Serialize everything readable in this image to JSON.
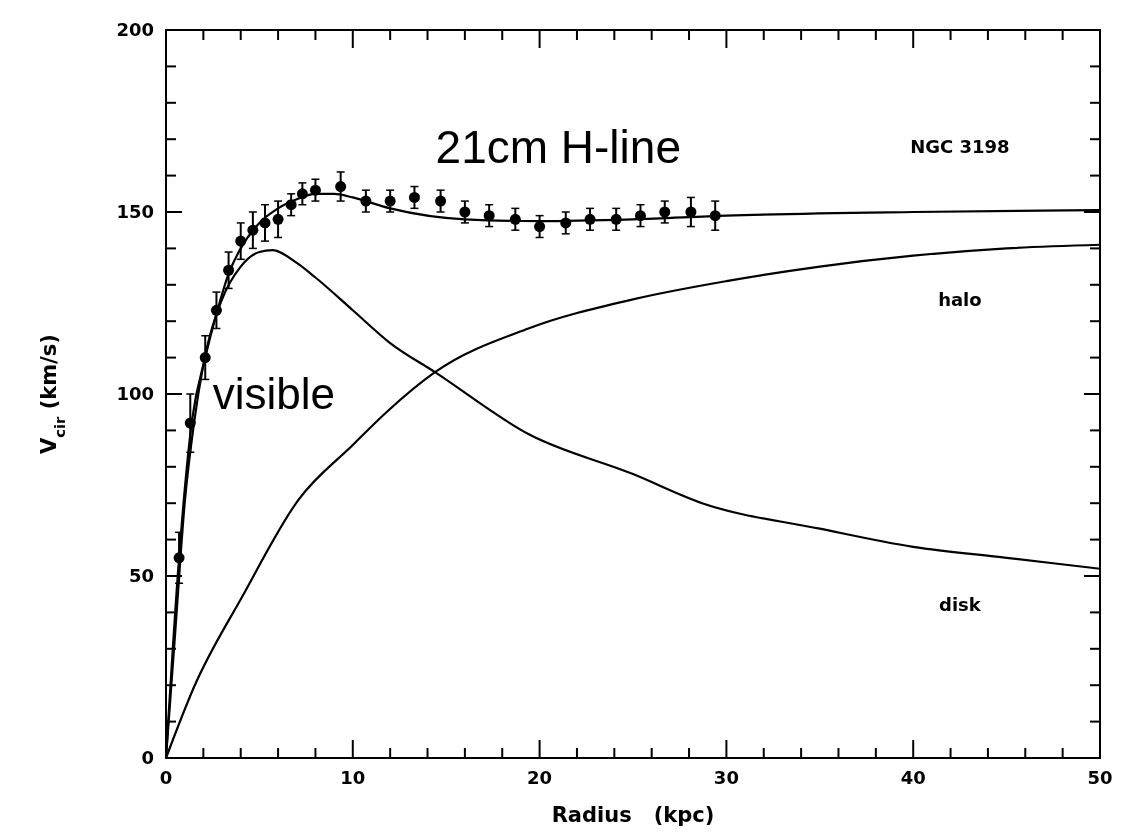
{
  "chart_data": {
    "type": "line",
    "xlabel": "Radius   (kpc)",
    "ylabel": "V$_{cir}$ (km/s)",
    "xlim": [
      0,
      50
    ],
    "ylim": [
      0,
      200
    ],
    "xticks": [
      0,
      {
        "value": 2,
        "label": null
      },
      {
        "value": 4,
        "label": null
      },
      {
        "value": 6,
        "label": null
      },
      {
        "value": 8,
        "label": null
      },
      10,
      {
        "value": 12,
        "label": null
      },
      {
        "value": 14,
        "label": null
      },
      {
        "value": 16,
        "label": null
      },
      {
        "value": 18,
        "label": null
      },
      20,
      {
        "value": 22,
        "label": null
      },
      {
        "value": 24,
        "label": null
      },
      {
        "value": 26,
        "label": null
      },
      {
        "value": 28,
        "label": null
      },
      30,
      {
        "value": 32,
        "label": null
      },
      {
        "value": 34,
        "label": null
      },
      {
        "value": 36,
        "label": null
      },
      {
        "value": 38,
        "label": null
      },
      40,
      {
        "value": 42,
        "label": null
      },
      {
        "value": 44,
        "label": null
      },
      {
        "value": 46,
        "label": null
      },
      {
        "value": 48,
        "label": null
      },
      50
    ],
    "yticks": [
      0,
      {
        "value": 10,
        "label": null
      },
      {
        "value": 20,
        "label": null
      },
      {
        "value": 30,
        "label": null
      },
      {
        "value": 40,
        "label": null
      },
      50,
      {
        "value": 60,
        "label": null
      },
      {
        "value": 70,
        "label": null
      },
      {
        "value": 80,
        "label": null
      },
      {
        "value": 90,
        "label": null
      },
      100,
      {
        "value": 110,
        "label": null
      },
      {
        "value": 120,
        "label": null
      },
      {
        "value": 130,
        "label": null
      },
      {
        "value": 140,
        "label": null
      },
      150,
      {
        "value": 160,
        "label": null
      },
      {
        "value": 170,
        "label": null
      },
      {
        "value": 180,
        "label": null
      },
      {
        "value": 190,
        "label": null
      },
      200
    ],
    "grid": false,
    "series": [
      {
        "type": "scatter",
        "marker": "circle",
        "color": "#000000",
        "x": [
          0.7,
          1.3,
          2.1,
          2.7,
          3.35,
          4.0,
          4.65,
          5.3,
          6.0,
          6.7,
          7.3,
          8.0,
          9.35,
          10.7,
          12.0,
          13.3,
          14.7,
          16.0,
          17.3,
          18.7,
          20.0,
          21.4,
          22.7,
          24.1,
          25.4,
          26.7,
          28.1,
          29.4
        ],
        "values": [
          55,
          92,
          110,
          123,
          134,
          142,
          145,
          147,
          148,
          152,
          155,
          156,
          157,
          153,
          153,
          154,
          153,
          150,
          149,
          148,
          146,
          147,
          148,
          148,
          149,
          150,
          150,
          149
        ],
        "errors": [
          7,
          8,
          6,
          5,
          5,
          5,
          5,
          5,
          5,
          3,
          3,
          3,
          4,
          3,
          3,
          3,
          3,
          3,
          3,
          3,
          3,
          3,
          3,
          3,
          3,
          3,
          4,
          4
        ]
      },
      {
        "color": "#000000",
        "x": [
          0,
          0.7,
          1.4,
          2.1,
          2.7,
          3.35,
          4,
          5,
          6,
          7,
          8,
          9,
          10,
          12,
          16,
          20,
          25,
          30,
          40,
          50
        ],
        "values": [
          0,
          55,
          93,
          110,
          122,
          133,
          140,
          147,
          151,
          153.5,
          155,
          155,
          154,
          151,
          148,
          147.5,
          148,
          149,
          150,
          150.5
        ]
      },
      {
        "color": "#000000",
        "x": [
          0,
          0.5,
          1,
          1.5,
          2,
          3,
          4,
          5,
          5.7,
          7,
          8,
          10,
          12,
          14.4,
          19.4,
          25,
          28.7,
          35,
          40,
          45,
          50
        ],
        "values": [
          0,
          35,
          70,
          92,
          108,
          126,
          135,
          139,
          139.5,
          136,
          132,
          123,
          114,
          106,
          89,
          78,
          70,
          63,
          58,
          55,
          52
        ]
      },
      {
        "color": "#000000",
        "x": [
          0,
          1.5,
          4.1,
          7.1,
          10,
          11.8,
          14.4,
          19.4,
          25,
          30,
          35,
          40,
          45,
          50
        ],
        "values": [
          0,
          19.5,
          44.5,
          71,
          86,
          95,
          106,
          118,
          126,
          131,
          135,
          138,
          140,
          141
        ]
      }
    ],
    "annotations": [
      "21cm H-line",
      "visible",
      "NGC 3198",
      "halo",
      "disk"
    ]
  }
}
